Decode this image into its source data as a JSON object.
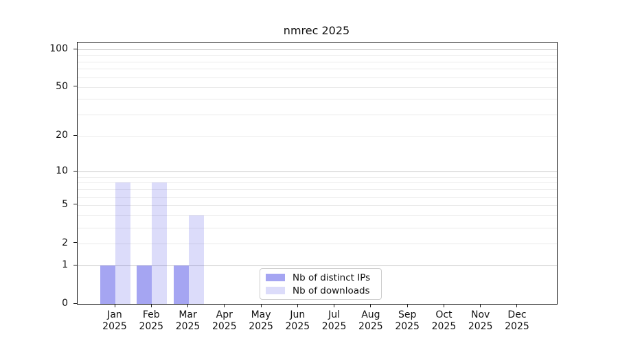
{
  "figure": {
    "background": "#ffffff",
    "spine_color": "#1a1a1a",
    "text_color": "#111111",
    "grid_decade_color": "#c6c6c6",
    "grid_minor_color": "#eaeaea",
    "legend_border_color": "#cccccc"
  },
  "chart_data": {
    "type": "bar",
    "title": "nmrec 2025",
    "categories": [
      "Jan 2025",
      "Feb 2025",
      "Mar 2025",
      "Apr 2025",
      "May 2025",
      "Jun 2025",
      "Jul 2025",
      "Aug 2025",
      "Sep 2025",
      "Oct 2025",
      "Nov 2025",
      "Dec 2025"
    ],
    "x_tick_lines": [
      [
        "Jan",
        "2025"
      ],
      [
        "Feb",
        "2025"
      ],
      [
        "Mar",
        "2025"
      ],
      [
        "Apr",
        "2025"
      ],
      [
        "May",
        "2025"
      ],
      [
        "Jun",
        "2025"
      ],
      [
        "Jul",
        "2025"
      ],
      [
        "Aug",
        "2025"
      ],
      [
        "Sep",
        "2025"
      ],
      [
        "Oct",
        "2025"
      ],
      [
        "Nov",
        "2025"
      ],
      [
        "Dec",
        "2025"
      ]
    ],
    "series": [
      {
        "name": "Nb of distinct IPs",
        "color": "#2e2ee0",
        "alpha": 0.43,
        "solid_hex": "#a5a5f2",
        "values": [
          1,
          1,
          1,
          0,
          0,
          0,
          0,
          0,
          0,
          0,
          0,
          0
        ]
      },
      {
        "name": "Nb of downloads",
        "color": "#2e2ee0",
        "alpha": 0.17,
        "solid_hex": "#dbdbf9",
        "values": [
          8,
          8,
          4,
          0,
          0,
          0,
          0,
          0,
          0,
          0,
          0,
          0
        ]
      }
    ],
    "yscale": "log1p",
    "ylim": [
      0,
      113
    ],
    "yticks": [
      0,
      1,
      2,
      5,
      10,
      20,
      50,
      100
    ],
    "yticks_minor": [
      3,
      4,
      6,
      7,
      8,
      9,
      30,
      40,
      60,
      70,
      80,
      90
    ],
    "grid": true,
    "xlabel": "",
    "ylabel": "",
    "legend_position": "lower center inside"
  }
}
